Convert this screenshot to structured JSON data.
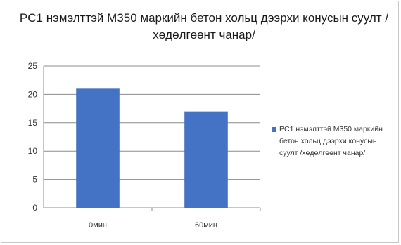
{
  "chart_data": {
    "type": "bar",
    "title": "PC1 нэмэлттэй M350 маркийн бетон хольц дээрхи конусын суулт /хөдөлгөөнт чанар/",
    "categories": [
      "0мин",
      "60мин"
    ],
    "series": [
      {
        "name": "PC1 нэмэлттэй M350 маркийн бетон хольц дээрхи конусын суулт /хөдөлгөөнт чанар/",
        "values": [
          21,
          17
        ],
        "color": "#4472c4"
      }
    ],
    "xlabel": "",
    "ylabel": "",
    "ylim": [
      0,
      25
    ],
    "yticks": [
      0,
      5,
      10,
      15,
      20,
      25
    ],
    "grid": true,
    "legend_position": "right",
    "colors": {
      "bar": "#4472c4",
      "grid": "#8c8c8c",
      "text": "#333333"
    }
  }
}
